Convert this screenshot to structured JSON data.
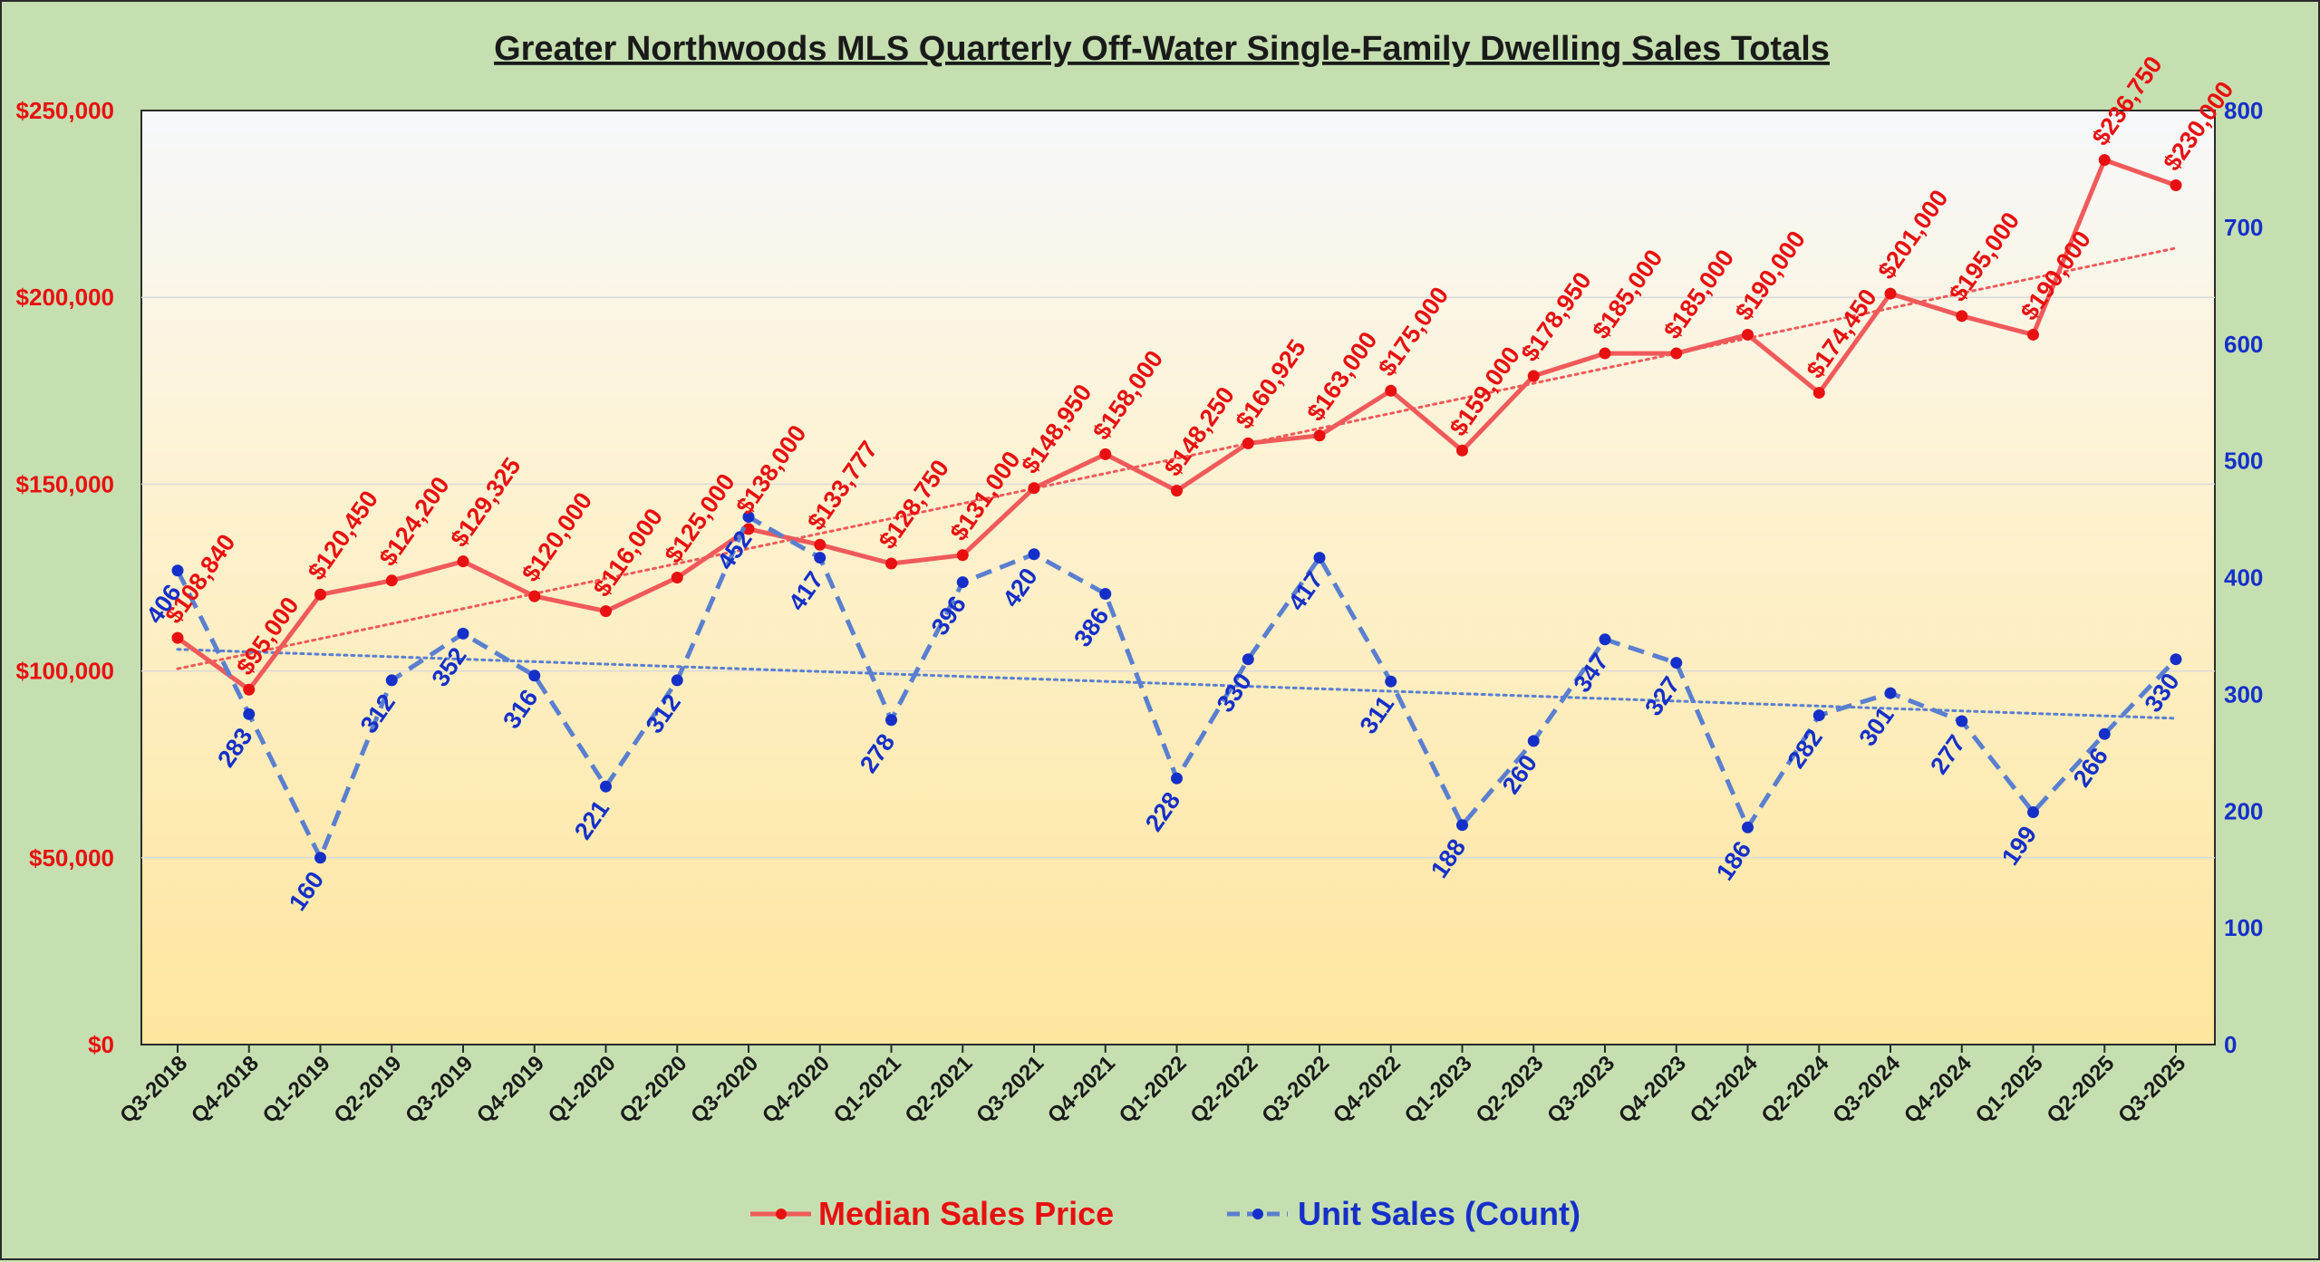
{
  "chart_data": {
    "type": "line",
    "title": "Greater Northwoods MLS Quarterly Off-Water Single-Family Dwelling Sales Totals",
    "categories": [
      "Q3-2018",
      "Q4-2018",
      "Q1-2019",
      "Q2-2019",
      "Q3-2019",
      "Q4-2019",
      "Q1-2020",
      "Q2-2020",
      "Q3-2020",
      "Q4-2020",
      "Q1-2021",
      "Q2-2021",
      "Q3-2021",
      "Q4-2021",
      "Q1-2022",
      "Q2-2022",
      "Q3-2022",
      "Q4-2022",
      "Q1-2023",
      "Q2-2023",
      "Q3-2023",
      "Q4-2023",
      "Q1-2024",
      "Q2-2024",
      "Q3-2024",
      "Q4-2024",
      "Q1-2025",
      "Q2-2025",
      "Q3-2025"
    ],
    "series": [
      {
        "name": "Median Sales Price",
        "axis": "left",
        "color": "#f05a5a",
        "label_color": "#e81010",
        "style": "solid",
        "values": [
          108840,
          95000,
          120450,
          124200,
          129325,
          120000,
          116000,
          125000,
          138000,
          133777,
          128750,
          131000,
          148950,
          158000,
          148250,
          160925,
          163000,
          175000,
          159000,
          178950,
          185000,
          185000,
          190000,
          174450,
          201000,
          195000,
          190000,
          236750,
          230000
        ],
        "labels": [
          "$108,840",
          "$95,000",
          "$120,450",
          "$124,200",
          "$129,325",
          "$120,000",
          "$116,000",
          "$125,000",
          "$138,000",
          "$133,777",
          "$128,750",
          "$131,000",
          "$148,950",
          "$158,000",
          "$148,250",
          "$160,925",
          "$163,000",
          "$175,000",
          "$159,000",
          "$178,950",
          "$185,000",
          "$185,000",
          "$190,000",
          "$174,450",
          "$201,000",
          "$195,000",
          "$190,000",
          "$236,750",
          "$230,000"
        ]
      },
      {
        "name": "Unit Sales (Count)",
        "axis": "right",
        "color": "#5a7fd0",
        "label_color": "#1530c8",
        "style": "dashed",
        "values": [
          406,
          283,
          160,
          312,
          352,
          316,
          221,
          312,
          452,
          417,
          278,
          396,
          420,
          386,
          228,
          330,
          417,
          311,
          188,
          260,
          347,
          327,
          186,
          282,
          301,
          277,
          199,
          266,
          330
        ],
        "labels": [
          "406",
          "283",
          "160",
          "312",
          "352",
          "316",
          "221",
          "312",
          "452",
          "417",
          "278",
          "396",
          "420",
          "386",
          "228",
          "330",
          "417",
          "311",
          "188",
          "260",
          "347",
          "327",
          "186",
          "282",
          "301",
          "277",
          "199",
          "266",
          "330"
        ]
      }
    ],
    "left_axis": {
      "ylim": [
        0,
        250000
      ],
      "ticks": [
        0,
        50000,
        100000,
        150000,
        200000,
        250000
      ],
      "tick_labels": [
        "$0",
        "$50,000",
        "$100,000",
        "$150,000",
        "$200,000",
        "$250,000"
      ],
      "color": "#e81010"
    },
    "right_axis": {
      "ylim": [
        0,
        800
      ],
      "ticks": [
        0,
        100,
        200,
        300,
        400,
        500,
        600,
        700,
        800
      ],
      "tick_labels": [
        "0",
        "100",
        "200",
        "300",
        "400",
        "500",
        "600",
        "700",
        "800"
      ],
      "color": "#1530c8"
    },
    "trendlines": [
      {
        "series": "Median Sales Price",
        "style": "dotted",
        "color": "#f05a5a"
      },
      {
        "series": "Unit Sales (Count)",
        "style": "dotted",
        "color": "#5a7fd0"
      }
    ],
    "grid": "horizontal",
    "plot_background": "gradient: light blue-white top to light yellow bottom",
    "legend": {
      "position": "bottom-center"
    }
  }
}
